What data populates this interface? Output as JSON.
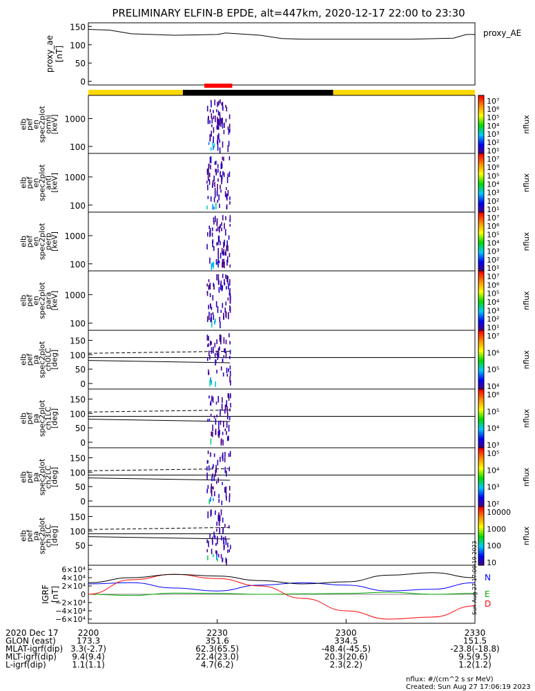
{
  "title": "PRELIMINARY ELFIN-B EPDE, alt=447km, 2020-12-17 22:00 to 23:30",
  "footer": {
    "units": "nflux: #/(cm^2 s sr MeV)",
    "created": "Created: Sun Aug 27 17:06:19 2023",
    "stamp": "Sun Aug 27 17:06:19 2023"
  },
  "ephem": {
    "labels": [
      "2020 Dec 17",
      "GLON (east)",
      "MLAT-igrf(dip)",
      "MLT-igrf(dip)",
      "L-igrf(dip)"
    ],
    "time_labels": [
      "2200",
      "2230",
      "2300",
      "2330"
    ],
    "glon": [
      "173.3",
      "351.6",
      "334.5",
      "151.5"
    ],
    "mlat": [
      "3.3(-2.7)",
      "62.3(65.5)",
      "-48.4(-45.5)",
      "-23.8(-18.8)"
    ],
    "mlt": [
      "9.4(9.4)",
      "22.4(23.0)",
      "20.3(20.6)",
      "9.5(9.5)"
    ],
    "lval": [
      "1.1(1.1)",
      "4.7(6.2)",
      "2.3(2.2)",
      "1.2(1.2)"
    ]
  },
  "chart_data": [
    {
      "type": "line",
      "ylabel": "proxy_ae [nT]",
      "legend": "proxy_AE",
      "xlim": [
        "22:00",
        "23:30"
      ],
      "ylim": [
        -10,
        160
      ],
      "yticks": [
        "150",
        "100",
        "50",
        "0"
      ],
      "x_minutes": [
        0,
        5,
        10,
        20,
        30,
        32,
        40,
        45,
        50,
        60,
        75,
        85,
        88,
        90
      ],
      "values": [
        142,
        140,
        130,
        126,
        128,
        132,
        126,
        117,
        115,
        115,
        115,
        118,
        128,
        128
      ],
      "color": "#000000"
    },
    {
      "type": "bar",
      "description_free": true,
      "segments": [
        {
          "from_min": 0,
          "to_min": 22,
          "color": "#ffd700"
        },
        {
          "from_min": 22,
          "to_min": 57,
          "color": "#000000"
        },
        {
          "from_min": 57,
          "to_min": 90,
          "color": "#ffd700"
        }
      ],
      "marker": {
        "from_min": 27,
        "to_min": 33.5,
        "color": "#ff0000"
      }
    },
    {
      "type": "heatmap",
      "ylabel": "elb pef en spec2plot omni [keV]",
      "yticks": [
        "1000",
        "100"
      ],
      "colorbar": {
        "label": "nflux",
        "ticks": [
          "10⁷",
          "10⁶",
          "10⁵",
          "10⁴",
          "10³",
          "10²",
          "10¹"
        ]
      },
      "active_window_min": [
        27.5,
        33
      ]
    },
    {
      "type": "heatmap",
      "ylabel": "elb pef en spec2plot anti [keV]",
      "yticks": [
        "1000",
        "100"
      ],
      "colorbar": {
        "label": "nflux",
        "ticks": [
          "10⁷",
          "10⁶",
          "10⁵",
          "10⁴",
          "10³",
          "10²",
          "10¹"
        ]
      },
      "active_window_min": [
        27.5,
        33
      ]
    },
    {
      "type": "heatmap",
      "ylabel": "elb pef en spec2plot perp [keV]",
      "yticks": [
        "1000",
        "100"
      ],
      "colorbar": {
        "label": "nflux",
        "ticks": [
          "10⁷",
          "10⁶",
          "10⁵",
          "10⁴",
          "10³",
          "10²",
          "10¹"
        ]
      },
      "active_window_min": [
        27.5,
        33
      ]
    },
    {
      "type": "heatmap",
      "ylabel": "elb pef en spec2plot para [keV]",
      "yticks": [
        "1000",
        "100"
      ],
      "colorbar": {
        "label": "nflux",
        "ticks": [
          "10⁷",
          "10⁶",
          "10⁵",
          "10⁴",
          "10³",
          "10²",
          "10¹"
        ]
      },
      "active_window_min": [
        27.5,
        33
      ]
    },
    {
      "type": "heatmap",
      "ylabel": "elb pef pa spec2plot ch0LC [deg]",
      "yticks": [
        "150",
        "100",
        "50",
        "0"
      ],
      "colorbar": {
        "label": "nflux",
        "ticks": [
          "10⁷",
          "10⁶",
          "10⁵",
          "10⁴"
        ]
      },
      "active_window_min": [
        27.5,
        33
      ]
    },
    {
      "type": "heatmap",
      "ylabel": "elb pef pa spec2plot ch1LC [deg]",
      "yticks": [
        "150",
        "100",
        "50",
        "0"
      ],
      "colorbar": {
        "label": "nflux",
        "ticks": [
          "10⁶",
          "10⁵",
          "10⁴",
          "10³"
        ]
      },
      "active_window_min": [
        27.5,
        33
      ]
    },
    {
      "type": "heatmap",
      "ylabel": "elb pef pa spec2plot ch2LC [deg]",
      "yticks": [
        "150",
        "100",
        "50",
        "0"
      ],
      "colorbar": {
        "label": "nflux",
        "ticks": [
          "10⁵",
          "10⁴",
          "10³",
          "10²"
        ]
      },
      "active_window_min": [
        27.5,
        33
      ]
    },
    {
      "type": "heatmap",
      "ylabel": "elb pef pa spec2plot ch3LC [deg]",
      "yticks": [
        "150",
        "100",
        "50"
      ],
      "colorbar": {
        "label": "nflux",
        "ticks": [
          "10000",
          "1000",
          "100",
          "10"
        ]
      },
      "active_window_min": [
        27.5,
        33
      ]
    },
    {
      "type": "line",
      "ylabel": "IGRF [nT]",
      "ylim": [
        -70000,
        70000
      ],
      "yticks": [
        "6×10⁴",
        "4×10⁴",
        "2×10⁴",
        "0",
        "−2×10⁴",
        "−4×10⁴",
        "−6×10⁴"
      ],
      "x_minutes": [
        0,
        10,
        20,
        30,
        40,
        50,
        60,
        70,
        80,
        90
      ],
      "series": [
        {
          "name": "N",
          "color": "#0000ff",
          "values": [
            25000,
            28000,
            15000,
            8000,
            22000,
            28000,
            22000,
            8000,
            12000,
            28000
          ]
        },
        {
          "name": "E",
          "color": "#00aa00",
          "values": [
            0,
            -3000,
            3000,
            2000,
            0,
            1000,
            2000,
            5000,
            0,
            2000
          ]
        },
        {
          "name": "D",
          "color": "#ff0000",
          "values": [
            0,
            35000,
            48000,
            38000,
            20000,
            -10000,
            -40000,
            -60000,
            -55000,
            -28000
          ]
        },
        {
          "name": "",
          "color": "#000000",
          "values": [
            28000,
            40000,
            48000,
            44000,
            33000,
            25000,
            30000,
            46000,
            52000,
            40000
          ]
        }
      ]
    }
  ]
}
